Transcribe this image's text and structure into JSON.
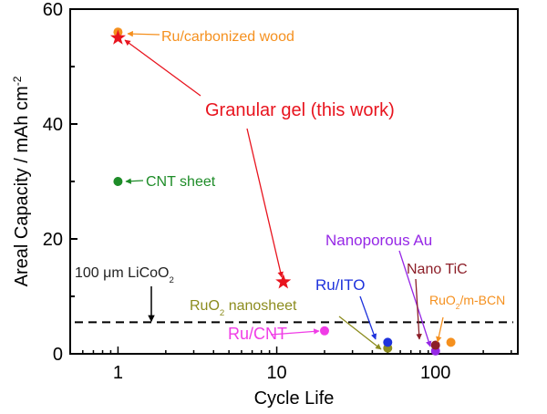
{
  "chart_data": {
    "type": "scatter",
    "xlabel": "Cycle Life",
    "ylabel": "Areal Capacity / mAh cm",
    "ylabel_sup": "-2",
    "x_scale": "log",
    "xlim": [
      0.5,
      330
    ],
    "ylim": [
      0,
      60
    ],
    "x_ticks": [
      {
        "value": 1,
        "label": "1"
      },
      {
        "value": 10,
        "label": "10"
      },
      {
        "value": 100,
        "label": "100"
      }
    ],
    "y_ticks": [
      {
        "value": 0,
        "label": "0"
      },
      {
        "value": 20,
        "label": "20"
      },
      {
        "value": 40,
        "label": "40"
      },
      {
        "value": 60,
        "label": "60"
      }
    ],
    "grid": false,
    "reference_line": {
      "y": 5.5,
      "label": "100 μm LiCoO",
      "label_sub": "2",
      "style": "dashed",
      "color": "#000000"
    },
    "series": [
      {
        "name": "Ru/carbonized wood",
        "marker": "circle",
        "color": "#f5901e",
        "points": [
          {
            "x": 1,
            "y": 56
          }
        ]
      },
      {
        "name": "Granular gel (this work)",
        "marker": "star",
        "color": "#e8141e",
        "points": [
          {
            "x": 1,
            "y": 55
          },
          {
            "x": 11,
            "y": 12.5
          }
        ]
      },
      {
        "name": "CNT sheet",
        "marker": "circle",
        "color": "#1e8c28",
        "points": [
          {
            "x": 1,
            "y": 30
          }
        ]
      },
      {
        "name": "Ru/CNT",
        "marker": "circle",
        "color": "#f03ce6",
        "points": [
          {
            "x": 20,
            "y": 4
          }
        ]
      },
      {
        "name": "RuO",
        "name_sub": "2",
        "name_rest": " nanosheet",
        "marker": "circle",
        "color": "#8c8c1e",
        "points": [
          {
            "x": 50,
            "y": 1
          }
        ]
      },
      {
        "name": "Ru/ITO",
        "marker": "circle",
        "color": "#1e32dc",
        "points": [
          {
            "x": 50,
            "y": 2
          }
        ]
      },
      {
        "name": "Nanoporous Au",
        "marker": "circle",
        "color": "#9628e6",
        "points": [
          {
            "x": 100,
            "y": 0.5
          }
        ]
      },
      {
        "name": "Nano TiC",
        "marker": "circle",
        "color": "#8c1e28",
        "points": [
          {
            "x": 100,
            "y": 1.5
          }
        ]
      },
      {
        "name": "RuO",
        "name_sub": "2",
        "name_rest": "/m-BCN",
        "marker": "circle",
        "color": "#f5901e",
        "points": [
          {
            "x": 125,
            "y": 2
          }
        ]
      }
    ]
  }
}
